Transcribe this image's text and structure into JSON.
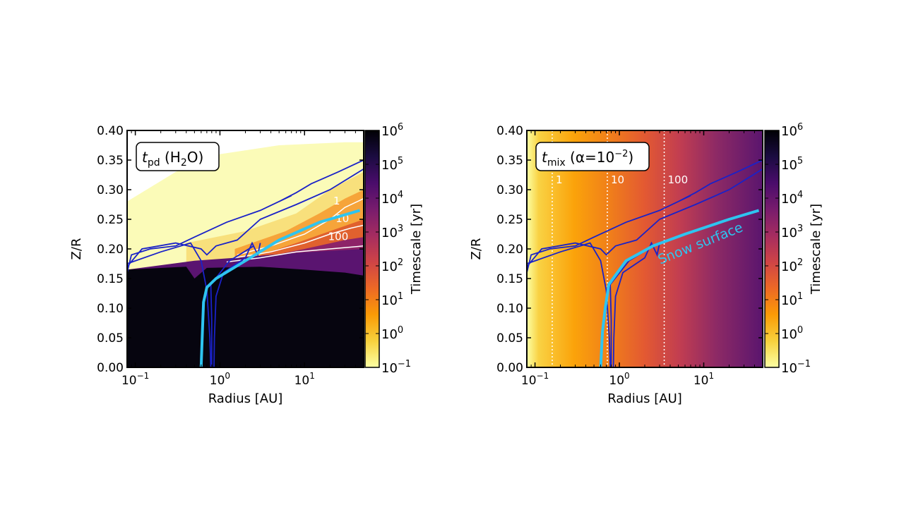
{
  "colors": {
    "contour_blue": "#1a22c8",
    "snow_line_cyan": "#2ec4f0",
    "contour_white": "#ffffff",
    "colormap": [
      "#fcffa4",
      "#f7d13d",
      "#fb9b06",
      "#ed6925",
      "#cf4446",
      "#a52c60",
      "#781c6d",
      "#4a0c6b",
      "#1b0c41",
      "#000004"
    ]
  },
  "chart_data": [
    {
      "type": "heatmap",
      "panel": "left",
      "label_main": "t",
      "label_sub": "pd",
      "label_rest": " (H",
      "label_sub2": "2",
      "label_end": "O)",
      "xlabel": "Radius [AU]",
      "ylabel": "Z/R",
      "x_scale": "log",
      "xlim": [
        0.08,
        50
      ],
      "ylim": [
        0.0,
        0.4
      ],
      "x_ticks": [
        {
          "value": 0.1,
          "base": "10",
          "exp": "−1"
        },
        {
          "value": 1,
          "base": "10",
          "exp": "0"
        },
        {
          "value": 10,
          "base": "10",
          "exp": "1"
        }
      ],
      "y_ticks": [
        "0.00",
        "0.05",
        "0.10",
        "0.15",
        "0.20",
        "0.25",
        "0.30",
        "0.35",
        "0.40"
      ],
      "colorbar": {
        "label": "Timescale [yr]",
        "scale": "log",
        "range": [
          0.1,
          1000000
        ],
        "ticks": [
          {
            "base": "10",
            "exp": "−1"
          },
          {
            "base": "10",
            "exp": "0"
          },
          {
            "base": "10",
            "exp": "1"
          },
          {
            "base": "10",
            "exp": "2"
          },
          {
            "base": "10",
            "exp": "3"
          },
          {
            "base": "10",
            "exp": "4"
          },
          {
            "base": "10",
            "exp": "5"
          },
          {
            "base": "10",
            "exp": "6"
          }
        ]
      },
      "contour_labels": [
        "1",
        "10",
        "100"
      ],
      "snow_line": [
        [
          0.6,
          0.0
        ],
        [
          0.62,
          0.06
        ],
        [
          0.64,
          0.11
        ],
        [
          0.7,
          0.135
        ],
        [
          0.9,
          0.15
        ],
        [
          2,
          0.18
        ],
        [
          5,
          0.215
        ],
        [
          15,
          0.245
        ],
        [
          45,
          0.265
        ]
      ]
    },
    {
      "type": "heatmap",
      "panel": "right",
      "label_main": "t",
      "label_sub": "mix",
      "label_rest": " (α=10",
      "label_sup": "−2",
      "label_end": ")",
      "xlabel": "Radius [AU]",
      "ylabel": "Z/R",
      "x_scale": "log",
      "xlim": [
        0.08,
        50
      ],
      "ylim": [
        0.0,
        0.4
      ],
      "x_ticks": [
        {
          "value": 0.1,
          "base": "10",
          "exp": "−1"
        },
        {
          "value": 1,
          "base": "10",
          "exp": "0"
        },
        {
          "value": 10,
          "base": "10",
          "exp": "1"
        }
      ],
      "y_ticks": [
        "0.00",
        "0.05",
        "0.10",
        "0.15",
        "0.20",
        "0.25",
        "0.30",
        "0.35",
        "0.40"
      ],
      "colorbar": {
        "label": "Timescale [yr]",
        "scale": "log",
        "range": [
          0.1,
          1000000
        ],
        "ticks": [
          {
            "base": "10",
            "exp": "−1"
          },
          {
            "base": "10",
            "exp": "0"
          },
          {
            "base": "10",
            "exp": "1"
          },
          {
            "base": "10",
            "exp": "2"
          },
          {
            "base": "10",
            "exp": "3"
          },
          {
            "base": "10",
            "exp": "4"
          },
          {
            "base": "10",
            "exp": "5"
          },
          {
            "base": "10",
            "exp": "6"
          }
        ]
      },
      "vertical_lines": [
        {
          "x": 0.16,
          "label": "1"
        },
        {
          "x": 0.72,
          "label": "10"
        },
        {
          "x": 3.4,
          "label": "100"
        }
      ],
      "annotation": "Snow surface",
      "snow_line": [
        [
          0.6,
          0.0
        ],
        [
          0.63,
          0.06
        ],
        [
          0.68,
          0.1
        ],
        [
          0.75,
          0.14
        ],
        [
          1.2,
          0.18
        ],
        [
          2.5,
          0.205
        ],
        [
          6,
          0.225
        ],
        [
          20,
          0.25
        ],
        [
          45,
          0.265
        ]
      ]
    }
  ]
}
